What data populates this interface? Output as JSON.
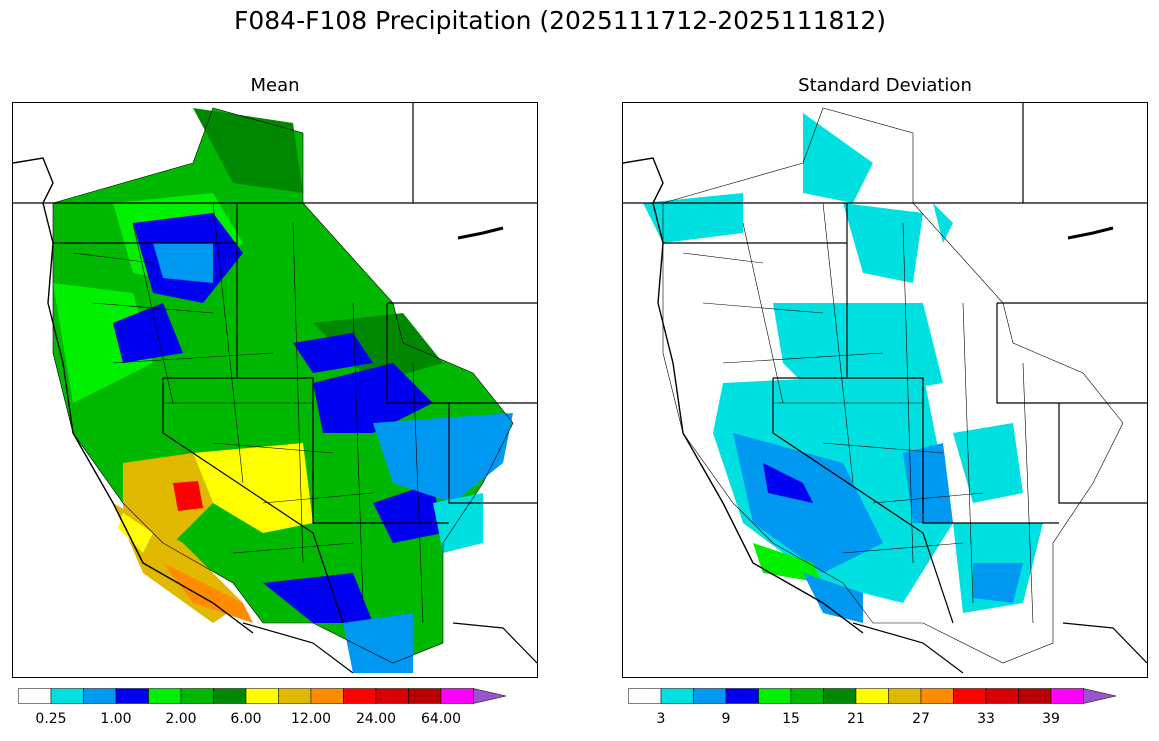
{
  "title": "F084-F108 Precipitation (2025111712-2025111812)",
  "panels": [
    {
      "title": "Mean",
      "colorbar": {
        "colors": [
          "#ffffff",
          "#00e0e0",
          "#0098f0",
          "#0000f0",
          "#00f000",
          "#00b800",
          "#008800",
          "#ffff00",
          "#e0b800",
          "#ff8c00",
          "#ff0000",
          "#d80000",
          "#b80000",
          "#ff00ff",
          "#9955cc"
        ],
        "tick_labels": [
          "0.25",
          "1.00",
          "2.00",
          "6.00",
          "12.00",
          "24.00",
          "64.00"
        ]
      }
    },
    {
      "title": "Standard Deviation",
      "colorbar": {
        "colors": [
          "#ffffff",
          "#00e0e0",
          "#0098f0",
          "#0000f0",
          "#00f000",
          "#00b800",
          "#008800",
          "#ffff00",
          "#e0b800",
          "#ff8c00",
          "#ff0000",
          "#d80000",
          "#b80000",
          "#ff00ff",
          "#9955cc"
        ],
        "tick_labels": [
          "3",
          "9",
          "15",
          "21",
          "27",
          "33",
          "39"
        ]
      }
    }
  ]
}
